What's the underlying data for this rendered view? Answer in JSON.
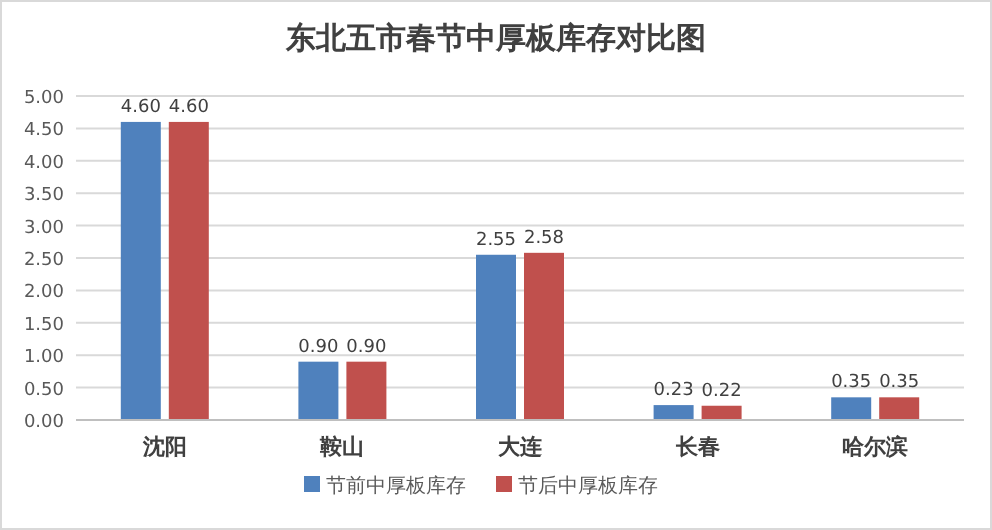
{
  "chart_data": {
    "type": "bar",
    "title": "东北五市春节中厚板库存对比图",
    "categories": [
      "沈阳",
      "鞍山",
      "大连",
      "长春",
      "哈尔滨"
    ],
    "series": [
      {
        "name": "节前中厚板库存",
        "color": "#4f81bd",
        "values": [
          4.6,
          0.9,
          2.55,
          0.23,
          0.35
        ],
        "value_labels": [
          "4.60",
          "0.90",
          "2.55",
          "0.23",
          "0.35"
        ]
      },
      {
        "name": "节后中厚板库存",
        "color": "#c0504d",
        "values": [
          4.6,
          0.9,
          2.58,
          0.22,
          0.35
        ],
        "value_labels": [
          "4.60",
          "0.90",
          "2.58",
          "0.22",
          "0.35"
        ]
      }
    ],
    "ylim": [
      0,
      5
    ],
    "yticks": [
      {
        "value": 0,
        "label": "0.00"
      },
      {
        "value": 0.5,
        "label": "0.50"
      },
      {
        "value": 1,
        "label": "1.00"
      },
      {
        "value": 1.5,
        "label": "1.50"
      },
      {
        "value": 2,
        "label": "2.00"
      },
      {
        "value": 2.5,
        "label": "2.50"
      },
      {
        "value": 3,
        "label": "3.00"
      },
      {
        "value": 3.5,
        "label": "3.50"
      },
      {
        "value": 4,
        "label": "4.00"
      },
      {
        "value": 4.5,
        "label": "4.50"
      },
      {
        "value": 5,
        "label": "5.00"
      }
    ],
    "grid": "y",
    "legend": "bottom"
  }
}
